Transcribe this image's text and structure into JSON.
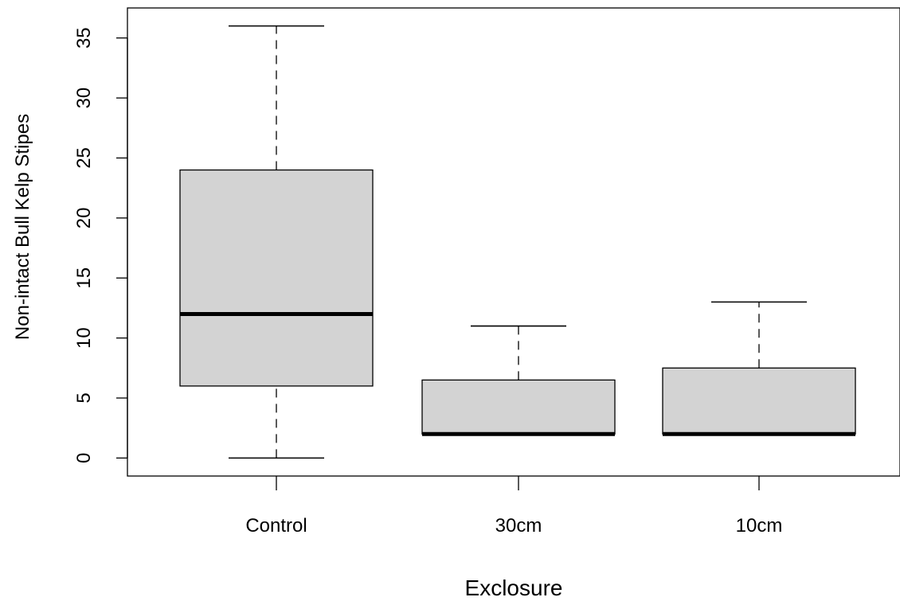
{
  "chart_data": {
    "type": "boxplot",
    "xlabel": "Exclosure",
    "ylabel": "Non-intact Bull Kelp Stipes",
    "ylim": [
      -1.5,
      37.5
    ],
    "yticks": [
      0,
      5,
      10,
      15,
      20,
      25,
      30,
      35
    ],
    "categories": [
      "Control",
      "30cm",
      "10cm"
    ],
    "boxes": [
      {
        "category": "Control",
        "min": 0,
        "q1": 6,
        "median": 12,
        "q3": 24,
        "max": 36
      },
      {
        "category": "30cm",
        "min": 2,
        "q1": 2,
        "median": 2,
        "q3": 6.5,
        "max": 11
      },
      {
        "category": "10cm",
        "min": 2,
        "q1": 2,
        "median": 2,
        "q3": 7.5,
        "max": 13
      }
    ],
    "box_fill": "#d3d3d3",
    "grid": false,
    "legend": "none"
  }
}
